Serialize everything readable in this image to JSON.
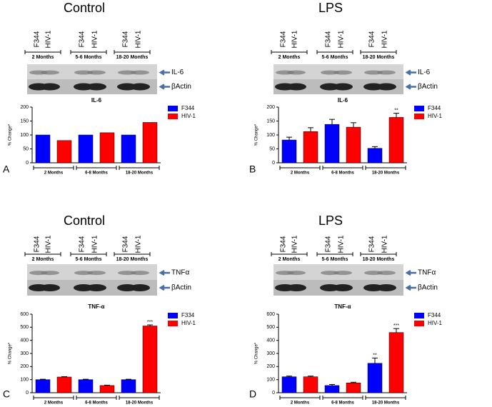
{
  "chart_data": [
    {
      "type": "bar",
      "panel_title": "Control",
      "panel_label": "A",
      "lanes": [
        "F344",
        "HIV-1",
        "F344",
        "HIV-1",
        "F344",
        "HIV-1"
      ],
      "lane_groups": [
        "2 Months",
        "5-6 Months",
        "18-20 Months"
      ],
      "bands": [
        "IL-6",
        "βActin"
      ],
      "title": "IL-6",
      "y_label": "% Change*",
      "categories": [
        "2 Months",
        "6-8 Months",
        "18-20 Months"
      ],
      "series": [
        {
          "name": "F344",
          "color": "#0000ff",
          "values": [
            100,
            100,
            100
          ]
        },
        {
          "name": "HIV-1",
          "color": "#ff0000",
          "values": [
            80,
            108,
            145
          ]
        }
      ],
      "ylim": [
        0,
        200
      ],
      "yticks": [
        0,
        50,
        100,
        150,
        200
      ]
    },
    {
      "type": "bar",
      "panel_title": "LPS",
      "panel_label": "B",
      "lanes": [
        "F344",
        "HIV-1",
        "F344",
        "HIV-1",
        "F344",
        "HIV-1"
      ],
      "lane_groups": [
        "2 Months",
        "5-6 Months",
        "18-20 Months"
      ],
      "bands": [
        "IL-6",
        "βActin"
      ],
      "title": "IL-6",
      "y_label": "% Change*",
      "categories": [
        "2 Months",
        "6-8 Months",
        "18-20 Months"
      ],
      "series": [
        {
          "name": "F344",
          "color": "#0000ff",
          "values": [
            82,
            138,
            52
          ],
          "errors": [
            10,
            18,
            6
          ],
          "annotations": [
            null,
            null,
            null
          ]
        },
        {
          "name": "HIV-1",
          "color": "#ff0000",
          "values": [
            112,
            128,
            163
          ],
          "errors": [
            14,
            16,
            15
          ],
          "annotations": [
            null,
            null,
            "**"
          ]
        }
      ],
      "ylim": [
        0,
        200
      ],
      "yticks": [
        0,
        50,
        100,
        150,
        200
      ]
    },
    {
      "type": "bar",
      "panel_title": "Control",
      "panel_label": "C",
      "lanes": [
        "F344",
        "HIV-1",
        "F344",
        "HIV-1",
        "F344",
        "HIV-1"
      ],
      "lane_groups": [
        "2 Months",
        "5-6 Months",
        "18-20 Months"
      ],
      "bands": [
        "TNFα",
        "βActin"
      ],
      "title": "TNF-α",
      "y_label": "% Change*",
      "categories": [
        "2 Months",
        "6-8 Months",
        "18-20 Months"
      ],
      "series": [
        {
          "name": "F334",
          "color": "#0000ff",
          "values": [
            100,
            100,
            100
          ],
          "errors": [
            3,
            3,
            3
          ],
          "annotations": [
            null,
            null,
            null
          ]
        },
        {
          "name": "HIV-1",
          "color": "#ff0000",
          "values": [
            120,
            55,
            510
          ],
          "errors": [
            3,
            3,
            8
          ],
          "annotations": [
            null,
            null,
            "***"
          ]
        }
      ],
      "ylim": [
        0,
        600
      ],
      "yticks": [
        0,
        100,
        200,
        300,
        400,
        500,
        600
      ]
    },
    {
      "type": "bar",
      "panel_title": "LPS",
      "panel_label": "D",
      "lanes": [
        "F344",
        "HIV-1",
        "F344",
        "HIV-1",
        "F344",
        "HIV-1"
      ],
      "lane_groups": [
        "2 Months",
        "5-6 Months",
        "18-20 Months"
      ],
      "bands": [
        "TNFα",
        "βActin"
      ],
      "title": "TNF-α",
      "y_label": "% Change*",
      "categories": [
        "2 Months",
        "6-8 Months",
        "18-20 Months"
      ],
      "series": [
        {
          "name": "F344",
          "color": "#0000ff",
          "values": [
            122,
            55,
            225
          ],
          "errors": [
            5,
            8,
            40
          ],
          "annotations": [
            null,
            null,
            "**"
          ]
        },
        {
          "name": "HIV-1",
          "color": "#ff0000",
          "values": [
            122,
            75,
            460
          ],
          "errors": [
            5,
            5,
            30
          ],
          "annotations": [
            null,
            null,
            "***"
          ]
        }
      ],
      "ylim": [
        0,
        600
      ],
      "yticks": [
        0,
        100,
        200,
        300,
        400,
        500,
        600
      ]
    }
  ]
}
